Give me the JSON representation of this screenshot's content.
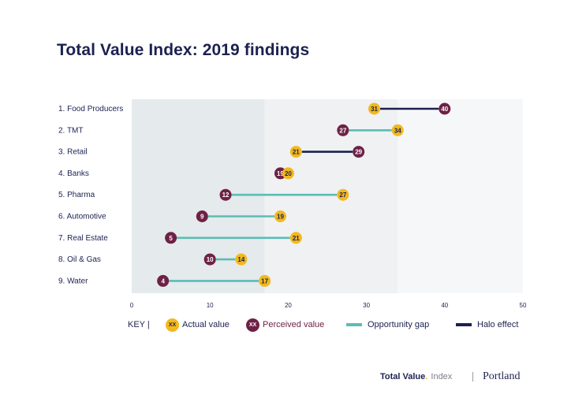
{
  "title": "Total Value Index: 2019 findings",
  "chart_data": {
    "type": "dumbbell",
    "title": "Total Value Index: 2019 findings",
    "xlim": [
      0,
      50
    ],
    "xticks": [
      0,
      10,
      20,
      30,
      40,
      50
    ],
    "shaded_bands": [
      [
        0,
        17
      ],
      [
        17,
        34
      ],
      [
        34,
        50
      ]
    ],
    "categories": [
      "1. Food Producers",
      "2. TMT",
      "3. Retail",
      "4. Banks",
      "5. Pharma",
      "6. Automotive",
      "7. Real Estate",
      "8. Oil & Gas",
      "9. Water"
    ],
    "series": [
      {
        "name": "Actual value",
        "values": [
          31,
          34,
          21,
          20,
          27,
          19,
          21,
          14,
          17
        ]
      },
      {
        "name": "Perceived value",
        "values": [
          40,
          27,
          29,
          19,
          12,
          9,
          5,
          10,
          4
        ]
      }
    ]
  },
  "legend": {
    "key_label": "KEY |",
    "marker_text": "XX",
    "actual": "Actual value",
    "perceived": "Perceived value",
    "gap": "Opportunity gap",
    "halo": "Halo effect"
  },
  "colors": {
    "actual": "#f2b81d",
    "perceived": "#6e2146",
    "gap": "#5bbdb5",
    "halo": "#1c2150",
    "text": "#1c2150",
    "band_dark": "#e5eaec",
    "band_mid": "#eff1f3",
    "band_light": "#f6f7f9"
  },
  "footer": {
    "brand_bold": "Total Value",
    "brand_dot": ".",
    "brand_index": "Index",
    "logo": "Portland"
  }
}
